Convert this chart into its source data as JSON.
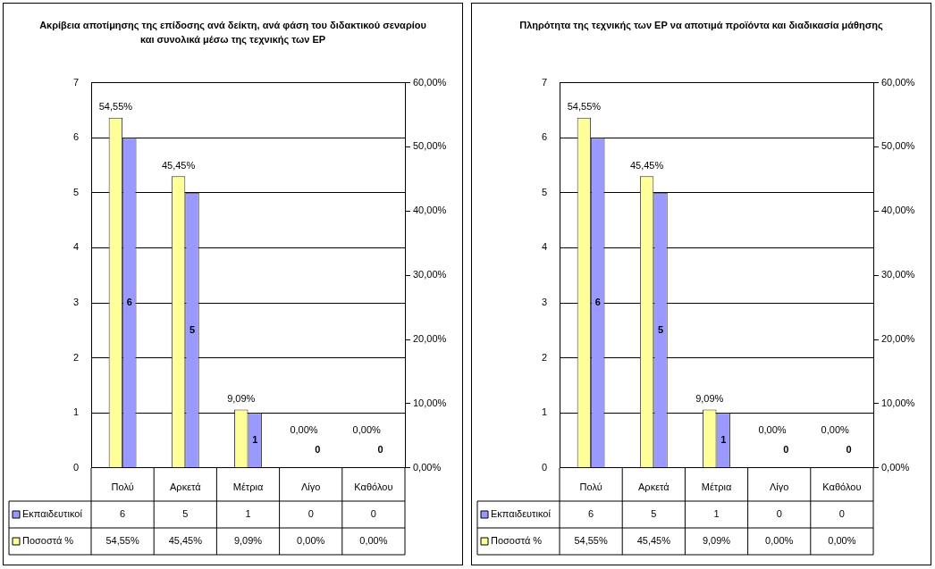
{
  "chart_data": [
    {
      "type": "bar",
      "title": "Ακρίβεια αποτίμησης της επίδοσης ανά δείκτη, ανά φάση του διδακτικού σεναρίου και συνολικά μέσω της τεχνικής των ΕΡ",
      "categories": [
        "Πολύ",
        "Αρκετά",
        "Μέτρια",
        "Λίγο",
        "Καθόλου"
      ],
      "series": [
        {
          "name": "Εκπαιδευτικοί",
          "color": "#9999ff",
          "values": [
            6,
            5,
            1,
            0,
            0
          ],
          "value_labels": [
            "6",
            "5",
            "1",
            "0",
            "0"
          ]
        },
        {
          "name": "Ποσοστά %",
          "color": "#ffff99",
          "axis": "y2",
          "values": [
            54.55,
            45.45,
            9.09,
            0,
            0
          ],
          "value_labels": [
            "54,55%",
            "45,45%",
            "9,09%",
            "0,00%",
            "0,00%"
          ]
        }
      ],
      "ylim": [
        0,
        7
      ],
      "yticks": [
        0,
        1,
        2,
        3,
        4,
        5,
        6,
        7
      ],
      "y2lim": [
        0,
        60
      ],
      "y2ticks": [
        {
          "value": 0,
          "label": "0,00%"
        },
        {
          "value": 10,
          "label": "10,00%"
        },
        {
          "value": 20,
          "label": "20,00%"
        },
        {
          "value": 30,
          "label": "30,00%"
        },
        {
          "value": 40,
          "label": "40,00%"
        },
        {
          "value": 50,
          "label": "50,00%"
        },
        {
          "value": 60,
          "label": "60,00%"
        }
      ],
      "grid": "y",
      "legend": "bottom"
    },
    {
      "type": "bar",
      "title": "Πληρότητα της τεχνικής των ΕΡ να αποτιμά προϊόντα και διαδικασία μάθησης",
      "categories": [
        "Πολύ",
        "Αρκετά",
        "Μέτρια",
        "Λίγο",
        "Καθόλου"
      ],
      "series": [
        {
          "name": "Εκπαιδευτικοί",
          "color": "#9999ff",
          "values": [
            6,
            5,
            1,
            0,
            0
          ],
          "value_labels": [
            "6",
            "5",
            "1",
            "0",
            "0"
          ]
        },
        {
          "name": "Ποσοστά %",
          "color": "#ffff99",
          "axis": "y2",
          "values": [
            54.55,
            45.45,
            9.09,
            0,
            0
          ],
          "value_labels": [
            "54,55%",
            "45,45%",
            "9,09%",
            "0,00%",
            "0,00%"
          ]
        }
      ],
      "ylim": [
        0,
        7
      ],
      "yticks": [
        0,
        1,
        2,
        3,
        4,
        5,
        6,
        7
      ],
      "y2lim": [
        0,
        60
      ],
      "y2ticks": [
        {
          "value": 0,
          "label": "0,00%"
        },
        {
          "value": 10,
          "label": "10,00%"
        },
        {
          "value": 20,
          "label": "20,00%"
        },
        {
          "value": 30,
          "label": "30,00%"
        },
        {
          "value": 40,
          "label": "40,00%"
        },
        {
          "value": 50,
          "label": "50,00%"
        },
        {
          "value": 60,
          "label": "60,00%"
        }
      ],
      "grid": "y",
      "legend": "bottom"
    }
  ]
}
